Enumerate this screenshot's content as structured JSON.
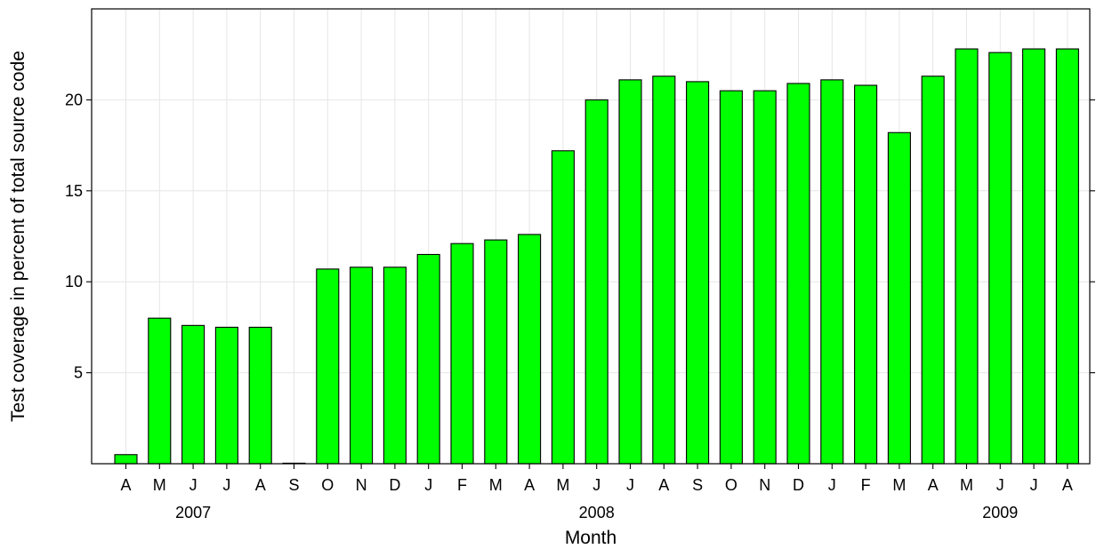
{
  "chart_data": {
    "type": "bar",
    "title": "",
    "xlabel": "Month",
    "ylabel": "Test coverage in percent of total source code",
    "ylim": [
      0,
      25
    ],
    "yticks": [
      5,
      10,
      15,
      20
    ],
    "grid": true,
    "categories": [
      "A",
      "M",
      "J",
      "J",
      "A",
      "S",
      "O",
      "N",
      "D",
      "J",
      "F",
      "M",
      "A",
      "M",
      "J",
      "J",
      "A",
      "S",
      "O",
      "N",
      "D",
      "J",
      "F",
      "M",
      "A",
      "M",
      "J",
      "J",
      "A"
    ],
    "year_labels": [
      {
        "label": "2007",
        "category_index": 2
      },
      {
        "label": "2008",
        "category_index": 14
      },
      {
        "label": "2009",
        "category_index": 26
      }
    ],
    "values": [
      0.5,
      8.0,
      7.6,
      7.5,
      7.5,
      0.0,
      10.7,
      10.8,
      10.8,
      11.5,
      12.1,
      12.3,
      12.6,
      17.2,
      20.0,
      21.1,
      21.3,
      21.0,
      20.5,
      20.5,
      20.9,
      21.1,
      20.8,
      18.2,
      21.3,
      22.8,
      22.6,
      22.8,
      22.8
    ],
    "colors": {
      "bar": "#00ff00",
      "bar_stroke": "#000000",
      "grid": "#e6e6e6",
      "frame": "#000000"
    }
  }
}
